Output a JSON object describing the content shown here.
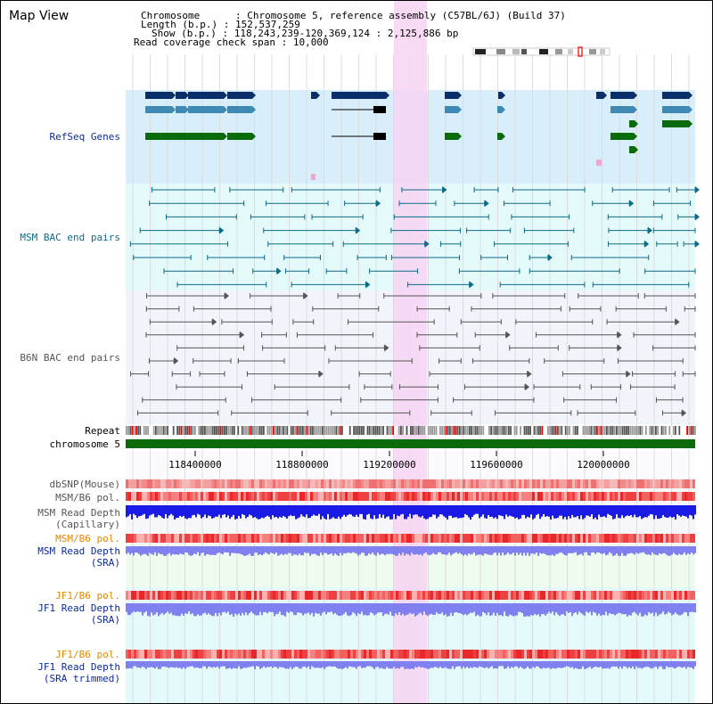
{
  "map_title": "Map View",
  "info": {
    "chromosome_key": "Chromosome",
    "chromosome_val": "Chromosome 5, reference assembly (C57BL/6J) (Build 37)",
    "length_key": "Length (b.p.)",
    "length_val": "152,537,259",
    "show_key": "Show (b.p.)",
    "show_val": "118,243,239-120,369,124 : 2,125,886 bp",
    "span_key": "Read coverage check span",
    "span_val": "10,000"
  },
  "tracks": {
    "refseq": "RefSeq Genes",
    "msm_bac": "MSM BAC end pairs",
    "b6n_bac": "B6N BAC end pairs",
    "repeat": "Repeat",
    "chromosome": "chromosome 5",
    "dbsnp": "dbSNP(Mouse)",
    "msm_b6_pol": "MSM/B6 pol.",
    "msm_depth_cap_1": "MSM Read Depth",
    "msm_depth_cap_2": "(Capillary)",
    "msm_b6_pol2": "MSM/B6 pol.",
    "msm_depth_sra_1": "MSM Read Depth",
    "msm_depth_sra_2": "(SRA)",
    "jf1_b6_pol": "JF1/B6 pol.",
    "jf1_depth_sra_1": "JF1 Read Depth",
    "jf1_depth_sra_2": "(SRA)",
    "jf1_b6_pol2": "JF1/B6 pol.",
    "jf1_depth_trim_1": "JF1 Read Depth",
    "jf1_depth_trim_2": "(SRA trimmed)"
  },
  "axis": {
    "ticks": [
      "118400000",
      "118800000",
      "119200000",
      "119600000",
      "120000000"
    ]
  },
  "colors": {
    "refseq_dark": "#0a2f6b",
    "refseq_mid": "#3f8ab5",
    "refseq_green": "#0a6b0a",
    "msm_line": "#0d6b86",
    "b6n_line": "#555555",
    "chrom_bar": "#0b6b0b",
    "highlight": "#f7d3f2",
    "depth_blue": "#1a1ae6",
    "depth_violet": "#8080f0"
  }
}
